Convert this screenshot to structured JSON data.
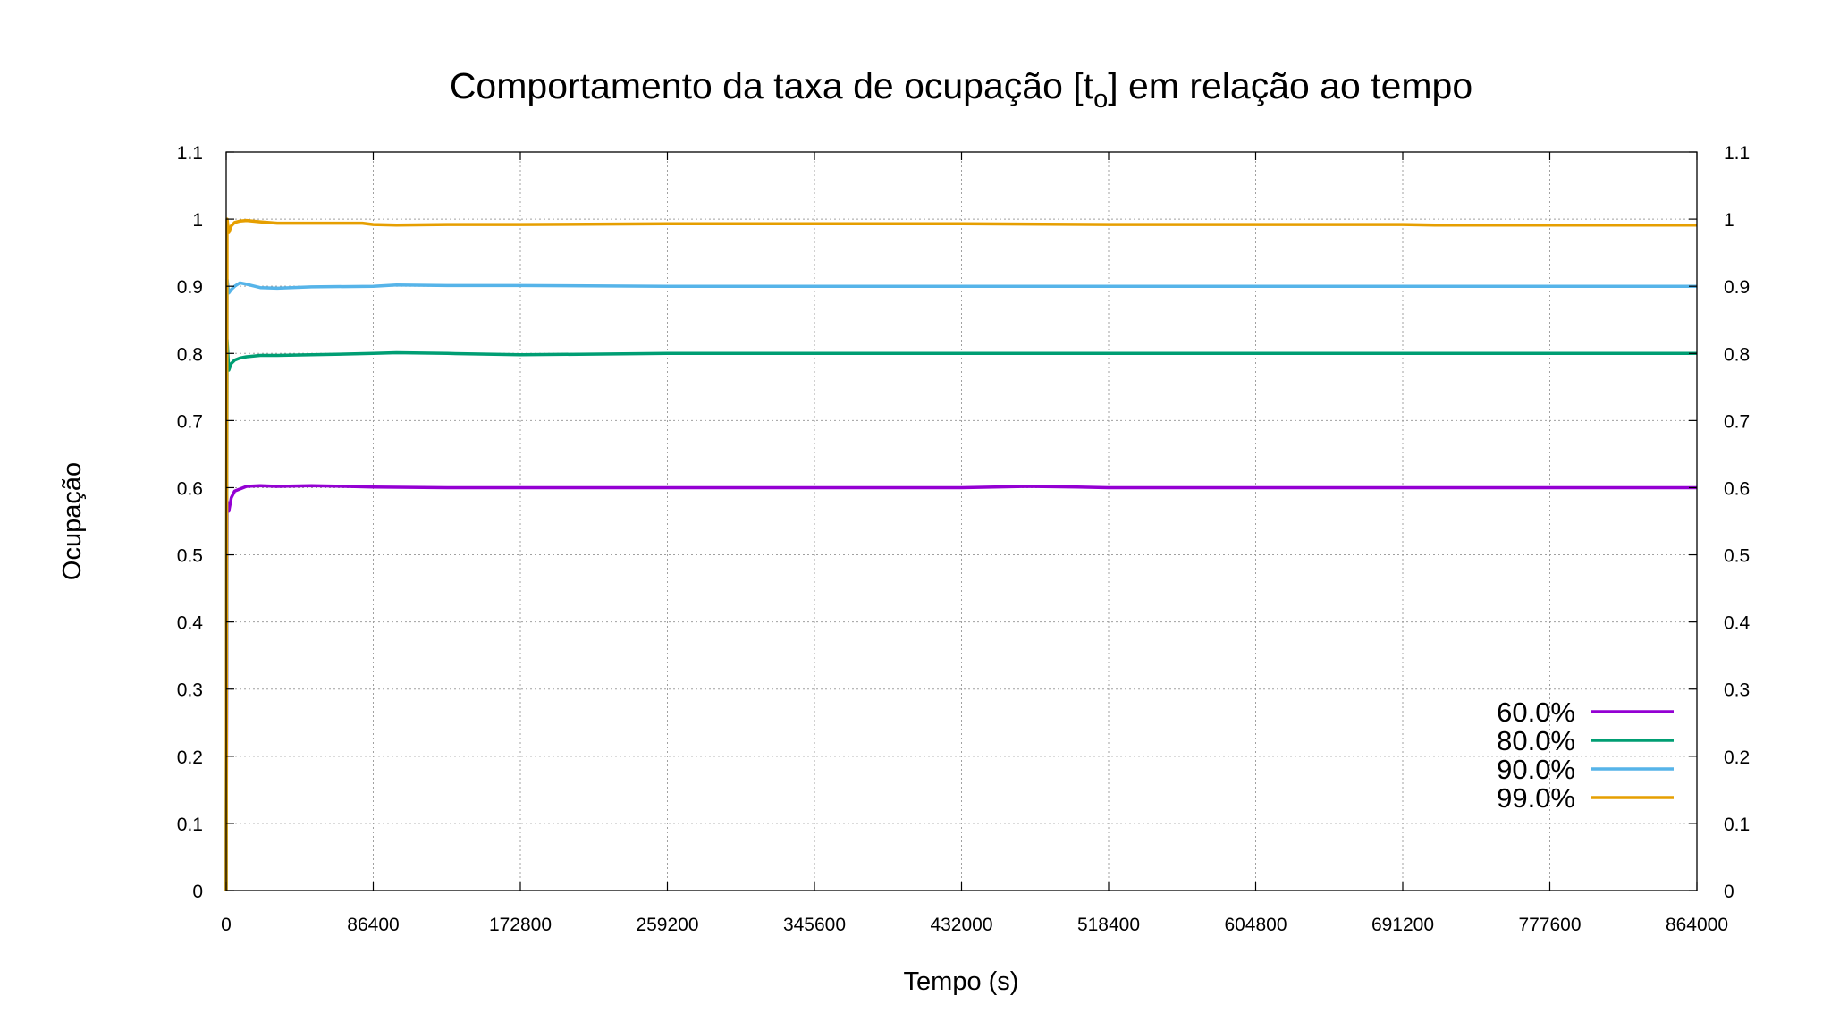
{
  "chart_data": {
    "type": "line",
    "title": "Comportamento da taxa de ocupação [t",
    "title_sub": "o",
    "title_end": "] em relação ao tempo",
    "xlabel": "Tempo (s)",
    "ylabel": "Ocupação",
    "xlim": [
      0,
      864000
    ],
    "ylim": [
      0,
      1.1
    ],
    "x_ticks": [
      "0",
      "86400",
      "172800",
      "259200",
      "345600",
      "432000",
      "518400",
      "604800",
      "691200",
      "777600",
      "864000"
    ],
    "y_ticks": [
      "0",
      "0.1",
      "0.2",
      "0.3",
      "0.4",
      "0.5",
      "0.6",
      "0.7",
      "0.8",
      "0.9",
      "1",
      "1.1"
    ],
    "y_ticks_right": [
      "0",
      "0.1",
      "0.2",
      "0.3",
      "0.4",
      "0.5",
      "0.6",
      "0.7",
      "0.8",
      "0.9",
      "1",
      "1.1"
    ],
    "grid": true,
    "legend_position": "bottom-right",
    "series": [
      {
        "name": "60.0%",
        "color": "#9400d3",
        "x": [
          0,
          500,
          1500,
          3000,
          5000,
          8000,
          12000,
          20000,
          30000,
          50000,
          86400,
          130000,
          172800,
          259200,
          345600,
          432000,
          470000,
          500000,
          518400,
          604800,
          691200,
          777600,
          864000
        ],
        "y": [
          0,
          0.58,
          0.565,
          0.585,
          0.595,
          0.598,
          0.602,
          0.603,
          0.602,
          0.603,
          0.601,
          0.6,
          0.6,
          0.6,
          0.6,
          0.6,
          0.602,
          0.601,
          0.6,
          0.6,
          0.6,
          0.6,
          0.6
        ]
      },
      {
        "name": "80.0%",
        "color": "#009e73",
        "x": [
          0,
          500,
          1500,
          3000,
          5000,
          8000,
          12000,
          20000,
          30000,
          50000,
          86400,
          100000,
          130000,
          172800,
          259200,
          345600,
          432000,
          518400,
          604800,
          691200,
          777600,
          864000
        ],
        "y": [
          0,
          0.82,
          0.775,
          0.785,
          0.79,
          0.793,
          0.795,
          0.797,
          0.797,
          0.798,
          0.8,
          0.801,
          0.8,
          0.798,
          0.8,
          0.8,
          0.8,
          0.8,
          0.8,
          0.8,
          0.8,
          0.8
        ]
      },
      {
        "name": "90.0%",
        "color": "#56b4e9",
        "x": [
          0,
          500,
          1500,
          3000,
          5000,
          8000,
          12000,
          20000,
          30000,
          50000,
          86400,
          100000,
          130000,
          172800,
          259200,
          345600,
          432000,
          518400,
          604800,
          691200,
          777600,
          864000
        ],
        "y": [
          0,
          0.91,
          0.89,
          0.895,
          0.9,
          0.905,
          0.903,
          0.898,
          0.897,
          0.899,
          0.9,
          0.902,
          0.901,
          0.901,
          0.9,
          0.9,
          0.9,
          0.9,
          0.9,
          0.9,
          0.9,
          0.9
        ]
      },
      {
        "name": "99.0%",
        "color": "#e69f00",
        "x": [
          0,
          500,
          1500,
          3000,
          5000,
          8000,
          12000,
          20000,
          30000,
          50000,
          80000,
          86400,
          100000,
          130000,
          172800,
          259200,
          345600,
          432000,
          518400,
          604800,
          691200,
          710000,
          777600,
          864000
        ],
        "y": [
          0,
          1.0,
          0.98,
          0.99,
          0.995,
          0.997,
          0.998,
          0.996,
          0.994,
          0.994,
          0.994,
          0.992,
          0.991,
          0.992,
          0.992,
          0.993,
          0.993,
          0.993,
          0.992,
          0.992,
          0.992,
          0.991,
          0.991,
          0.991
        ]
      }
    ]
  }
}
